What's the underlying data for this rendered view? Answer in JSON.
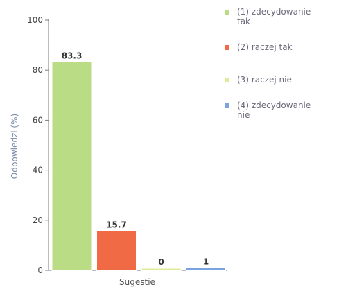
{
  "chart_data": {
    "type": "bar",
    "categories": [
      "(1) zdecydowanie tak",
      "(2) raczej tak",
      "(3) raczej nie",
      "(4) zdecydowanie nie"
    ],
    "values": [
      83.3,
      15.7,
      0,
      1
    ],
    "data_labels": [
      "83.3",
      "15.7",
      "0",
      "1"
    ],
    "colors": [
      "#b9dc84",
      "#f06a45",
      "#dcec9a",
      "#7aa4e0"
    ],
    "xlabel": "Sugestie",
    "ylabel": "Odpowiedzi (%)",
    "ylim": [
      0,
      100
    ],
    "yticks": [
      0,
      20,
      40,
      60,
      80,
      100
    ],
    "ytick_labels": [
      "0",
      "20",
      "40",
      "60",
      "80",
      "100"
    ],
    "grid": false,
    "legend": {
      "placement": "right",
      "entries": [
        {
          "label": "(1) zdecydowanie tak",
          "line1": "(1) zdecydowanie",
          "line2": "tak",
          "color": "#b9dc84"
        },
        {
          "label": "(2) raczej tak",
          "line1": "(2) raczej tak",
          "line2": "",
          "color": "#f06a45"
        },
        {
          "label": "(3) raczej nie",
          "line1": "(3) raczej nie",
          "line2": "",
          "color": "#dcec9a"
        },
        {
          "label": "(4) zdecydowanie nie",
          "line1": "(4) zdecydowanie",
          "line2": "nie",
          "color": "#7aa4e0"
        }
      ]
    }
  }
}
